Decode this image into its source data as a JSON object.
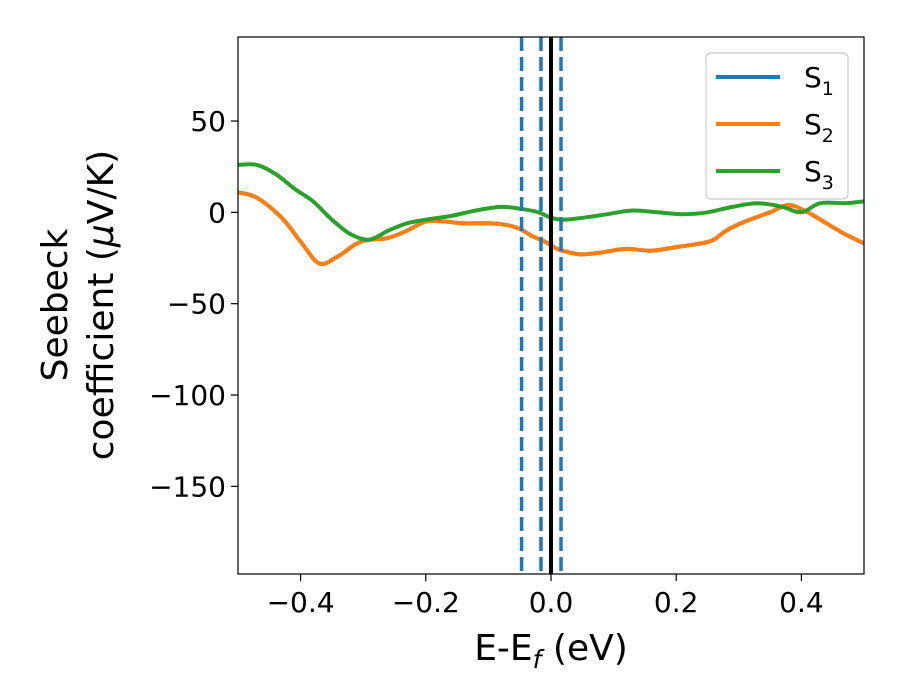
{
  "chart_data": {
    "type": "line",
    "xlabel": {
      "main": "E-E",
      "sub": "f",
      "tail": " (eV)"
    },
    "ylabel": {
      "line1": "Seebeck",
      "line2_pre": "coefficient  (",
      "mu": "μ",
      "line2_post": "V/K)"
    },
    "xlim": [
      -0.5,
      0.5
    ],
    "ylim": [
      -198,
      96
    ],
    "xticks": [
      -0.4,
      -0.2,
      0.0,
      0.2,
      0.4
    ],
    "xtick_labels": [
      "−0.4",
      "−0.2",
      "0.0",
      "0.2",
      "0.4"
    ],
    "yticks": [
      50,
      0,
      -50,
      -100,
      -150
    ],
    "ytick_labels": [
      "50",
      "0",
      "−50",
      "−100",
      "−150"
    ],
    "grid": false,
    "legend_position": "top-right",
    "series": [
      {
        "name": "S",
        "sub": "1",
        "color": "#1f77b4",
        "x": [
          -0.5,
          -0.47,
          -0.43,
          -0.4,
          -0.37,
          -0.34,
          -0.31,
          -0.29,
          -0.26,
          -0.23,
          -0.2,
          -0.17,
          -0.14,
          -0.1,
          -0.07,
          -0.05,
          -0.03,
          -0.01,
          0.01,
          0.03,
          0.05,
          0.08,
          0.12,
          0.16,
          0.2,
          0.24,
          0.26,
          0.28,
          0.31,
          0.35,
          0.38,
          0.41,
          0.44,
          0.47,
          0.5
        ],
        "y": [
          11,
          8,
          -3,
          -16,
          -28,
          -24,
          -17,
          -15,
          -14,
          -10,
          -5,
          -5,
          -6,
          -6,
          -7,
          -9,
          -13,
          -16,
          -20,
          -22,
          -23,
          -22,
          -20,
          -21,
          -19,
          -17,
          -15,
          -10,
          -5,
          0,
          4,
          0,
          -6,
          -12,
          -17
        ]
      },
      {
        "name": "S",
        "sub": "2",
        "color": "#ff7f0e",
        "x": [
          -0.5,
          -0.47,
          -0.43,
          -0.4,
          -0.37,
          -0.34,
          -0.31,
          -0.29,
          -0.26,
          -0.23,
          -0.2,
          -0.17,
          -0.14,
          -0.1,
          -0.07,
          -0.05,
          -0.03,
          -0.01,
          0.01,
          0.03,
          0.05,
          0.08,
          0.12,
          0.16,
          0.2,
          0.24,
          0.26,
          0.28,
          0.31,
          0.35,
          0.38,
          0.41,
          0.44,
          0.47,
          0.5
        ],
        "y": [
          11,
          8,
          -3,
          -16,
          -28,
          -24,
          -17,
          -15,
          -14,
          -10,
          -5,
          -5,
          -6,
          -6,
          -7,
          -9,
          -13,
          -16,
          -20,
          -22,
          -23,
          -22,
          -20,
          -21,
          -19,
          -17,
          -15,
          -10,
          -5,
          0,
          4,
          0,
          -6,
          -12,
          -17
        ]
      },
      {
        "name": "S",
        "sub": "3",
        "color": "#2ca02c",
        "x": [
          -0.5,
          -0.47,
          -0.44,
          -0.41,
          -0.38,
          -0.35,
          -0.32,
          -0.29,
          -0.26,
          -0.23,
          -0.2,
          -0.16,
          -0.12,
          -0.08,
          -0.05,
          -0.02,
          0.0,
          0.02,
          0.05,
          0.09,
          0.13,
          0.17,
          0.21,
          0.25,
          0.29,
          0.33,
          0.37,
          0.4,
          0.43,
          0.47,
          0.5
        ],
        "y": [
          26,
          26,
          21,
          13,
          6,
          -4,
          -12,
          -15,
          -10,
          -6,
          -4,
          -2,
          1,
          3,
          2,
          0,
          -3,
          -4,
          -3,
          -1,
          1,
          0,
          -1,
          0,
          3,
          5,
          3,
          0,
          5,
          5,
          6
        ]
      }
    ],
    "vlines": [
      {
        "x": -0.047,
        "style": "dashed",
        "color": "#1f77b4"
      },
      {
        "x": -0.016,
        "style": "dashed",
        "color": "#1f77b4"
      },
      {
        "x": 0.016,
        "style": "dashed",
        "color": "#1f77b4"
      },
      {
        "x": 0.0,
        "style": "solid",
        "color": "#000000"
      }
    ]
  }
}
